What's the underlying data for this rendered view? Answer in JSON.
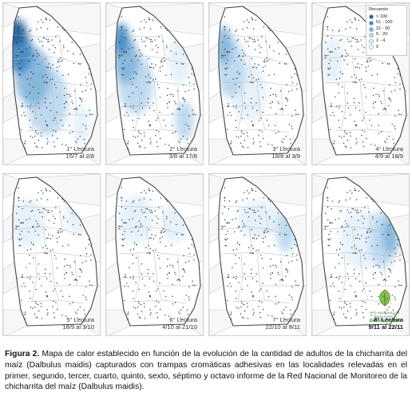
{
  "legend": {
    "title": "Recuento",
    "items": [
      {
        "label": "> 100",
        "color": "#1f5d9a"
      },
      {
        "label": "51 - 100",
        "color": "#3f86c1"
      },
      {
        "label": "21 - 50",
        "color": "#7fb2da"
      },
      {
        "label": "5 - 20",
        "color": "#b8d6ee"
      },
      {
        "label": "1 - 4",
        "color": "#e3effa"
      },
      {
        "label": "0",
        "color": "#ffffff"
      }
    ]
  },
  "panels": [
    {
      "lectura": "1° Lectura",
      "dates": "15/7 al 2/8",
      "heat": [
        [
          0.12,
          0.18,
          0.2,
          0.14,
          "#1f5d9a"
        ],
        [
          0.16,
          0.3,
          0.24,
          0.22,
          "#3f86c1"
        ],
        [
          0.3,
          0.45,
          0.3,
          0.3,
          "#7fb2da"
        ],
        [
          0.45,
          0.6,
          0.35,
          0.35,
          "#b8d6ee"
        ],
        [
          0.8,
          0.75,
          0.15,
          0.2,
          "#e3effa"
        ]
      ]
    },
    {
      "lectura": "2° Lectura",
      "dates": "3/8 al 17/8",
      "heat": [
        [
          0.15,
          0.22,
          0.14,
          0.16,
          "#3f86c1"
        ],
        [
          0.2,
          0.35,
          0.22,
          0.24,
          "#7fb2da"
        ],
        [
          0.3,
          0.5,
          0.3,
          0.3,
          "#b8d6ee"
        ],
        [
          0.75,
          0.35,
          0.2,
          0.25,
          "#e3effa"
        ],
        [
          0.8,
          0.72,
          0.16,
          0.2,
          "#b8d6ee"
        ]
      ]
    },
    {
      "lectura": "3° Lectura",
      "dates": "18/8 al 3/9",
      "heat": [
        [
          0.15,
          0.26,
          0.14,
          0.2,
          "#7fb2da"
        ],
        [
          0.22,
          0.4,
          0.25,
          0.3,
          "#b8d6ee"
        ],
        [
          0.4,
          0.55,
          0.3,
          0.3,
          "#e3effa"
        ]
      ]
    },
    {
      "lectura": "4° Lectura",
      "dates": "4/9 al 18/9",
      "heat": [
        [
          0.2,
          0.35,
          0.2,
          0.25,
          "#e3effa"
        ]
      ]
    },
    {
      "lectura": "5° Lectura",
      "dates": "18/9 al 3/10",
      "heat": [
        [
          0.25,
          0.3,
          0.3,
          0.25,
          "#e3effa"
        ],
        [
          0.75,
          0.25,
          0.2,
          0.2,
          "#e3effa"
        ]
      ]
    },
    {
      "lectura": "6° Lectura",
      "dates": "4/10 al 21/10",
      "heat": [
        [
          0.3,
          0.28,
          0.3,
          0.25,
          "#e3effa"
        ],
        [
          0.7,
          0.3,
          0.25,
          0.2,
          "#e3effa"
        ]
      ]
    },
    {
      "lectura": "7° Lectura",
      "dates": "22/10 al 8/11",
      "heat": [
        [
          0.78,
          0.35,
          0.16,
          0.22,
          "#b8d6ee"
        ],
        [
          0.5,
          0.28,
          0.35,
          0.2,
          "#e3effa"
        ]
      ]
    },
    {
      "lectura": "8° Lectura",
      "dates": "9/11 al 22/11",
      "heat": [
        [
          0.8,
          0.38,
          0.14,
          0.2,
          "#7fb2da"
        ],
        [
          0.72,
          0.4,
          0.22,
          0.3,
          "#b8d6ee"
        ],
        [
          0.5,
          0.4,
          0.35,
          0.3,
          "#e3effa"
        ]
      ],
      "bold": true
    }
  ],
  "logo": {
    "line1": "RED NACIONAL DE MONITOREO",
    "line2": "Dalbulus maidis"
  },
  "caption": {
    "fig": "Figura 2.",
    "text": " Mapa de calor establecido en función de la evolución de la cantidad de adultos de la chicharrita del maíz (Dalbulus maidis) capturados con trampas cromáticas adhesivas en las localidades relevadas en el primer, segundo, tercer, cuarto, quinto, sexto, séptimo y octavo informe de la Red Nacional de Monitoreo de la chicharrita del maíz (Dalbulus maidis)."
  }
}
